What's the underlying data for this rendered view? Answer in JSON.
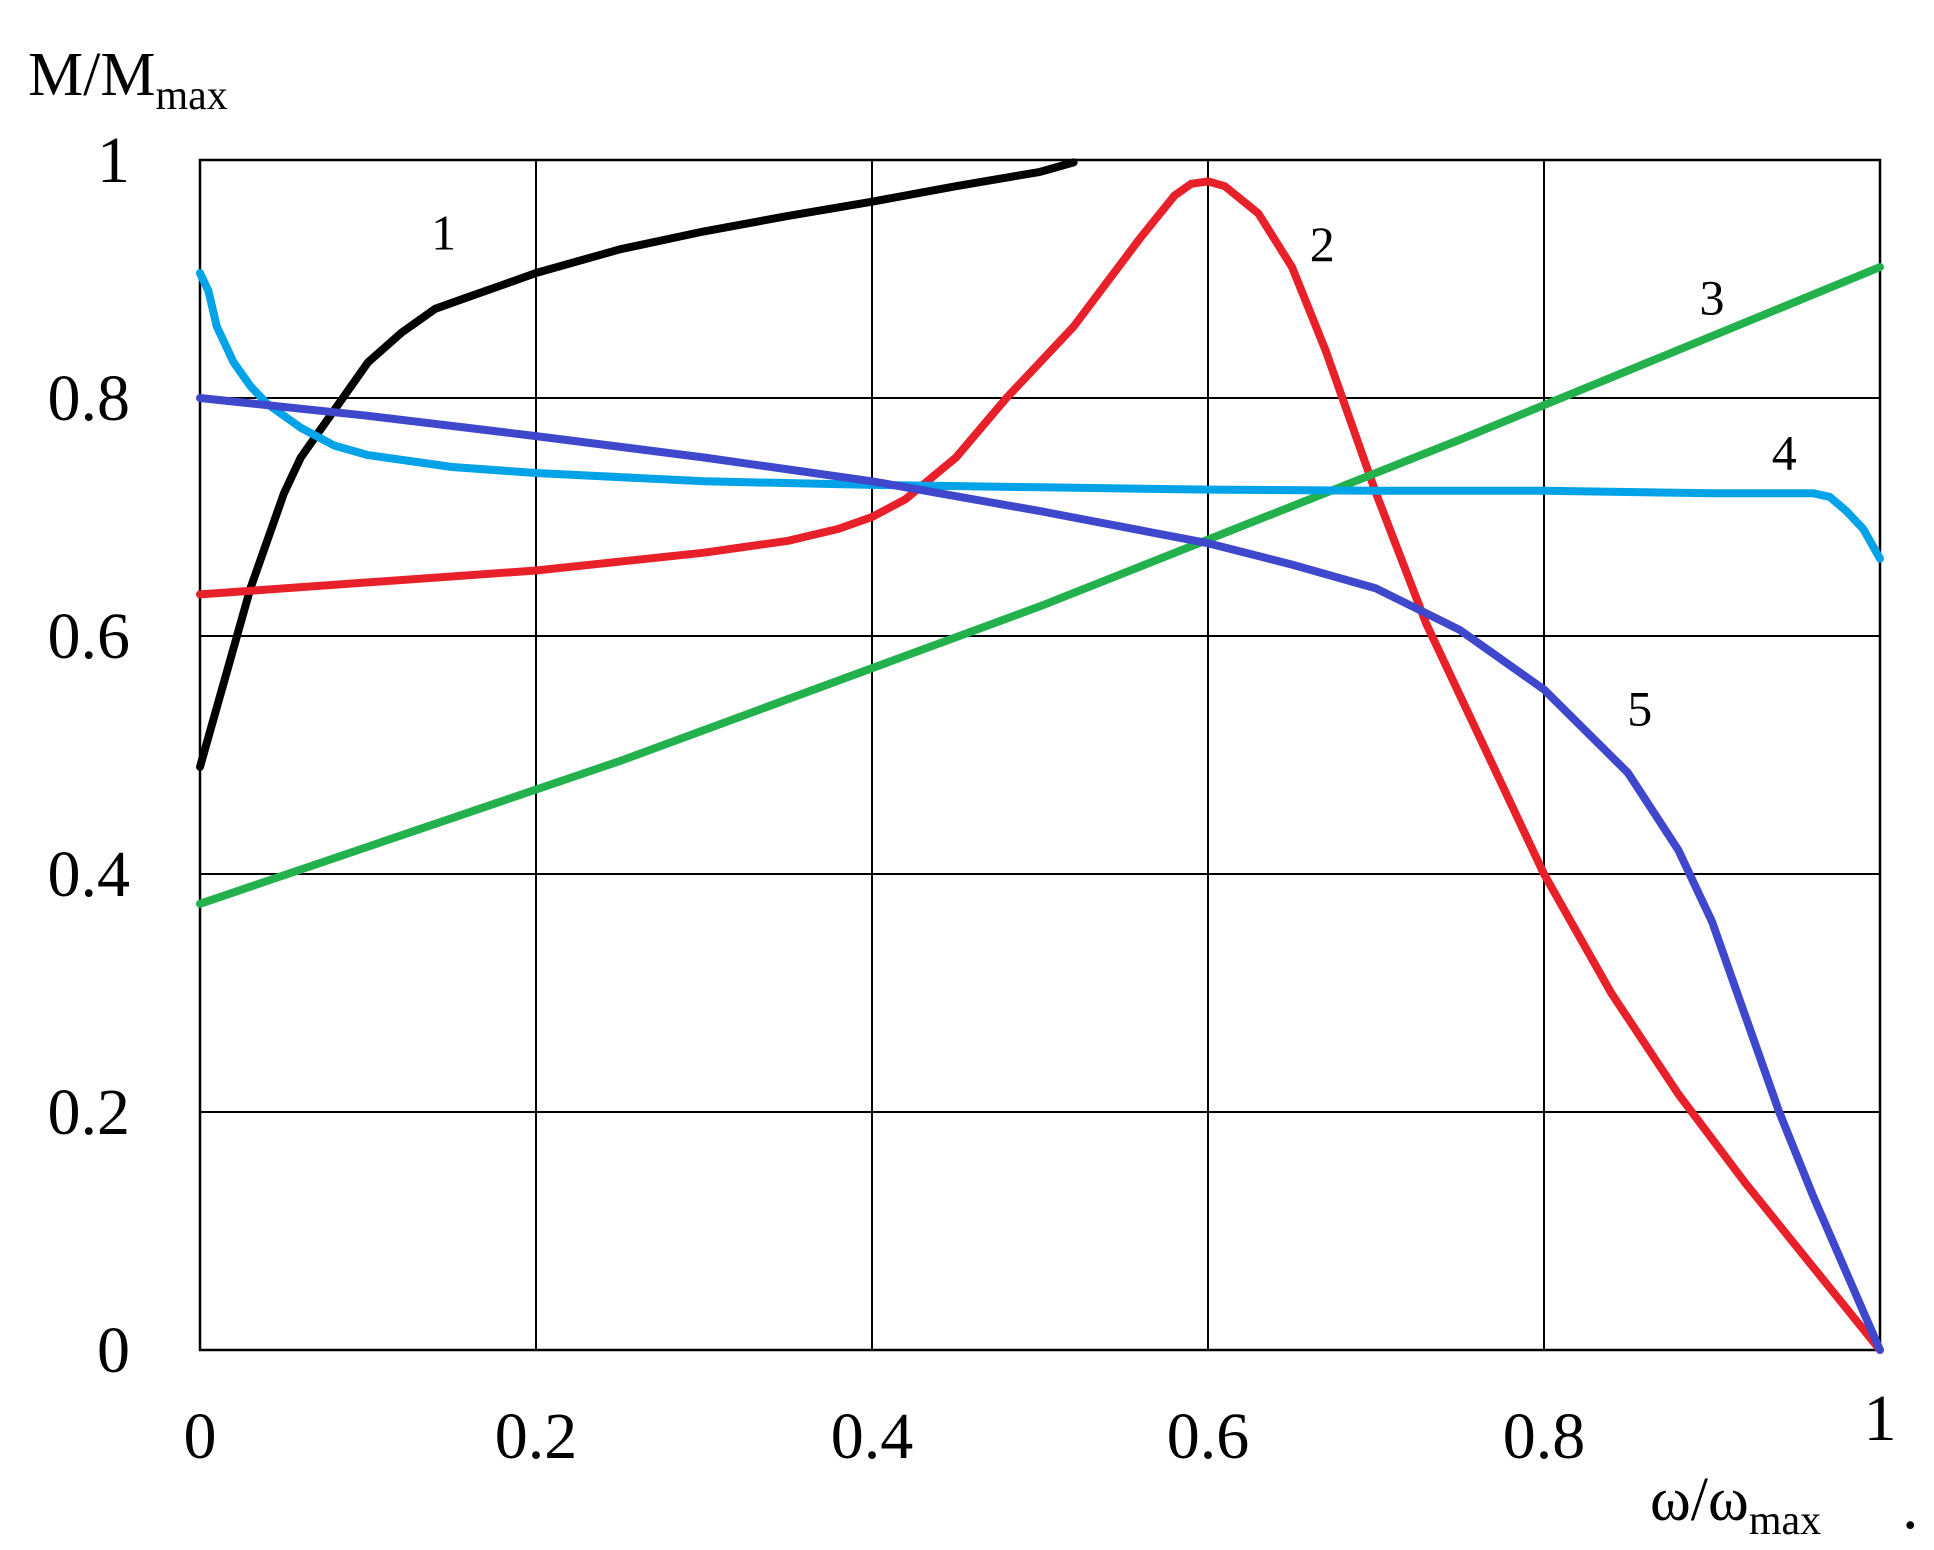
{
  "chart_data": {
    "type": "line",
    "ylabel": {
      "main": "M/M",
      "sub": "max"
    },
    "xlabel": {
      "main": "ω/ω",
      "sub": "max"
    },
    "trailing_mark": ".",
    "xlim": [
      0,
      1
    ],
    "ylim": [
      0,
      1
    ],
    "x_ticks": [
      0,
      0.2,
      0.4,
      0.6,
      0.8,
      1
    ],
    "y_ticks": [
      0,
      0.2,
      0.4,
      0.6,
      0.8,
      1
    ],
    "x_tick_labels": [
      "0",
      "0.2",
      "0.4",
      "0.6",
      "0.8",
      "1"
    ],
    "y_tick_labels": [
      "0",
      "0.2",
      "0.4",
      "0.6",
      "0.8",
      "1"
    ],
    "grid": true,
    "legend": "none",
    "series": [
      {
        "label": "1",
        "color": "#000000",
        "label_at": [
          0.145,
          0.925
        ],
        "points": [
          [
            0,
            0.49
          ],
          [
            0.01,
            0.54
          ],
          [
            0.02,
            0.59
          ],
          [
            0.03,
            0.64
          ],
          [
            0.04,
            0.68
          ],
          [
            0.05,
            0.72
          ],
          [
            0.06,
            0.75
          ],
          [
            0.07,
            0.77
          ],
          [
            0.08,
            0.79
          ],
          [
            0.09,
            0.81
          ],
          [
            0.1,
            0.83
          ],
          [
            0.12,
            0.855
          ],
          [
            0.14,
            0.875
          ],
          [
            0.16,
            0.885
          ],
          [
            0.18,
            0.895
          ],
          [
            0.2,
            0.905
          ],
          [
            0.25,
            0.925
          ],
          [
            0.3,
            0.94
          ],
          [
            0.35,
            0.953
          ],
          [
            0.4,
            0.965
          ],
          [
            0.45,
            0.978
          ],
          [
            0.5,
            0.99
          ],
          [
            0.52,
            0.998
          ]
        ]
      },
      {
        "label": "2",
        "color": "#e8202a",
        "label_at": [
          0.668,
          0.915
        ],
        "points": [
          [
            0,
            0.635
          ],
          [
            0.1,
            0.645
          ],
          [
            0.2,
            0.655
          ],
          [
            0.3,
            0.67
          ],
          [
            0.35,
            0.68
          ],
          [
            0.38,
            0.69
          ],
          [
            0.4,
            0.7
          ],
          [
            0.42,
            0.715
          ],
          [
            0.45,
            0.75
          ],
          [
            0.48,
            0.8
          ],
          [
            0.52,
            0.86
          ],
          [
            0.56,
            0.935
          ],
          [
            0.58,
            0.97
          ],
          [
            0.59,
            0.98
          ],
          [
            0.6,
            0.982
          ],
          [
            0.61,
            0.978
          ],
          [
            0.63,
            0.955
          ],
          [
            0.65,
            0.91
          ],
          [
            0.67,
            0.84
          ],
          [
            0.7,
            0.72
          ],
          [
            0.73,
            0.61
          ],
          [
            0.76,
            0.52
          ],
          [
            0.8,
            0.4
          ],
          [
            0.84,
            0.3
          ],
          [
            0.88,
            0.215
          ],
          [
            0.92,
            0.14
          ],
          [
            0.96,
            0.07
          ],
          [
            1.0,
            0.0
          ]
        ]
      },
      {
        "label": "3",
        "color": "#22b14c",
        "label_at": [
          0.9,
          0.87
        ],
        "points": [
          [
            0,
            0.375
          ],
          [
            0.25,
            0.495
          ],
          [
            0.5,
            0.625
          ],
          [
            0.75,
            0.765
          ],
          [
            1.0,
            0.91
          ]
        ]
      },
      {
        "label": "4",
        "color": "#00a2e8",
        "label_at": [
          0.943,
          0.74
        ],
        "points": [
          [
            0,
            0.905
          ],
          [
            0.005,
            0.89
          ],
          [
            0.01,
            0.86
          ],
          [
            0.02,
            0.83
          ],
          [
            0.03,
            0.81
          ],
          [
            0.04,
            0.795
          ],
          [
            0.06,
            0.775
          ],
          [
            0.08,
            0.76
          ],
          [
            0.1,
            0.752
          ],
          [
            0.15,
            0.742
          ],
          [
            0.2,
            0.737
          ],
          [
            0.3,
            0.73
          ],
          [
            0.4,
            0.727
          ],
          [
            0.5,
            0.725
          ],
          [
            0.6,
            0.723
          ],
          [
            0.7,
            0.722
          ],
          [
            0.8,
            0.722
          ],
          [
            0.9,
            0.72
          ],
          [
            0.96,
            0.72
          ],
          [
            0.97,
            0.717
          ],
          [
            0.98,
            0.705
          ],
          [
            0.99,
            0.69
          ],
          [
            1.0,
            0.665
          ]
        ]
      },
      {
        "label": "5",
        "color": "#3f48cc",
        "label_at": [
          0.857,
          0.525
        ],
        "points": [
          [
            0,
            0.8
          ],
          [
            0.1,
            0.785
          ],
          [
            0.2,
            0.768
          ],
          [
            0.3,
            0.75
          ],
          [
            0.4,
            0.73
          ],
          [
            0.5,
            0.705
          ],
          [
            0.6,
            0.678
          ],
          [
            0.65,
            0.66
          ],
          [
            0.7,
            0.64
          ],
          [
            0.75,
            0.605
          ],
          [
            0.8,
            0.555
          ],
          [
            0.85,
            0.485
          ],
          [
            0.88,
            0.42
          ],
          [
            0.9,
            0.36
          ],
          [
            0.92,
            0.28
          ],
          [
            0.94,
            0.2
          ],
          [
            0.96,
            0.13
          ],
          [
            0.98,
            0.065
          ],
          [
            1.0,
            0.0
          ]
        ]
      }
    ]
  }
}
